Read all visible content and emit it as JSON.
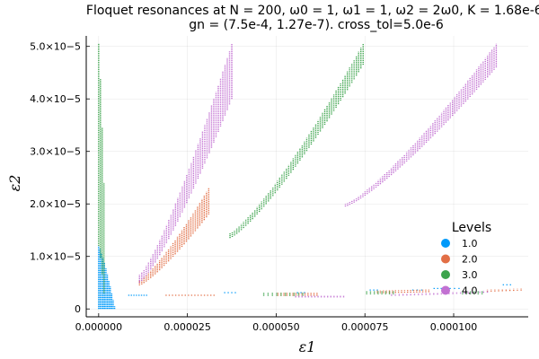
{
  "chart_data": {
    "type": "scatter",
    "title_line1": "Floquet resonances at N = 200, ω0 = 1, ω1 = 1, ω2 = 2ω0, K = 1.68e-6,",
    "title_line2": "gn = (7.5e-4, 1.27e-7). cross_tol=5.0e-6",
    "xlabel": "ε1",
    "ylabel": "ε2",
    "xlim": [
      -3.5e-06,
      0.000121
    ],
    "ylim": [
      -1.5e-06,
      5.2e-05
    ],
    "xticks": [
      0,
      2.5e-05,
      5e-05,
      7.5e-05,
      0.0001
    ],
    "xtick_labels": [
      "0.000000",
      "0.000025",
      "0.000050",
      "0.000075",
      "0.000100"
    ],
    "yticks": [
      0,
      1e-05,
      2e-05,
      3e-05,
      4e-05,
      5e-05
    ],
    "ytick_labels": [
      "0",
      "1.0×10−5",
      "2.0×10−5",
      "3.0×10−5",
      "4.0×10−5",
      "5.0×10−5"
    ],
    "grid": true,
    "legend_title": "Levels",
    "legend_position": "lower-right",
    "series": [
      {
        "name": "1.0",
        "color": "#009AFA",
        "bands": [
          {
            "x0": 0.0,
            "x1": 4.5e-06,
            "ylow0": 0.0,
            "ylow1": 0.0,
            "yhigh0": 1.2e-05,
            "yhigh1": 5e-07,
            "n": 12
          },
          {
            "x0": 8.5e-06,
            "x1": 1.35e-05,
            "ylow0": 2.5e-06,
            "ylow1": 2.5e-06,
            "yhigh0": 2.8e-06,
            "yhigh1": 2.8e-06,
            "n": 8
          },
          {
            "x0": 3.55e-05,
            "x1": 3.85e-05,
            "ylow0": 3e-06,
            "ylow1": 3e-06,
            "yhigh0": 3.3e-06,
            "yhigh1": 3.3e-06,
            "n": 4
          },
          {
            "x0": 5.6e-05,
            "x1": 5.8e-05,
            "ylow0": 3e-06,
            "ylow1": 3e-06,
            "yhigh0": 3.3e-06,
            "yhigh1": 3.3e-06,
            "n": 3
          },
          {
            "x0": 7.65e-05,
            "x1": 7.85e-05,
            "ylow0": 3.5e-06,
            "ylow1": 3.5e-06,
            "yhigh0": 3.8e-06,
            "yhigh1": 3.8e-06,
            "n": 3
          },
          {
            "x0": 8.85e-05,
            "x1": 9.1e-05,
            "ylow0": 3.5e-06,
            "ylow1": 3.5e-06,
            "yhigh0": 3.8e-06,
            "yhigh1": 3.8e-06,
            "n": 3
          },
          {
            "x0": 9.45e-05,
            "x1": 9.65e-05,
            "ylow0": 3.8e-06,
            "ylow1": 3.8e-06,
            "yhigh0": 4.1e-06,
            "yhigh1": 4.1e-06,
            "n": 3
          },
          {
            "x0": 9.9e-05,
            "x1": 0.0001015,
            "ylow0": 3.8e-06,
            "ylow1": 3.8e-06,
            "yhigh0": 4.1e-06,
            "yhigh1": 4.1e-06,
            "n": 3
          },
          {
            "x0": 0.000114,
            "x1": 0.000116,
            "ylow0": 4.5e-06,
            "ylow1": 4.5e-06,
            "yhigh0": 4.8e-06,
            "yhigh1": 4.8e-06,
            "n": 3
          }
        ]
      },
      {
        "name": "2.0",
        "color": "#E26F46",
        "bands": [
          {
            "x0": 1.15e-05,
            "x1": 3.1e-05,
            "ylow0": 4.5e-06,
            "ylow1": 1.8e-05,
            "yhigh0": 5.5e-06,
            "yhigh1": 2.3e-05,
            "n": 32
          },
          {
            "x0": 1.9e-05,
            "x1": 3.25e-05,
            "ylow0": 2.5e-06,
            "ylow1": 2.5e-06,
            "yhigh0": 2.8e-06,
            "yhigh1": 2.8e-06,
            "n": 16
          },
          {
            "x0": 5.05e-05,
            "x1": 6.15e-05,
            "ylow0": 2.5e-06,
            "ylow1": 2.5e-06,
            "yhigh0": 3.1e-06,
            "yhigh1": 3.1e-06,
            "n": 14
          },
          {
            "x0": 7.85e-05,
            "x1": 9.3e-05,
            "ylow0": 3e-06,
            "ylow1": 3.2e-06,
            "yhigh0": 3.5e-06,
            "yhigh1": 3.7e-06,
            "n": 18
          },
          {
            "x0": 0.0001095,
            "x1": 0.000119,
            "ylow0": 3.3e-06,
            "ylow1": 3.5e-06,
            "yhigh0": 3.7e-06,
            "yhigh1": 3.9e-06,
            "n": 10
          }
        ]
      },
      {
        "name": "3.0",
        "color": "#3DA44D",
        "bands": [
          {
            "x0": 0.0,
            "x1": 1.5e-06,
            "ylow0": 1.2e-05,
            "ylow1": 3e-06,
            "yhigh0": 5.05e-05,
            "yhigh1": 2.4e-05,
            "n": 4
          },
          {
            "x0": 3.7e-05,
            "x1": 7.45e-05,
            "ylow0": 1.35e-05,
            "ylow1": 4.65e-05,
            "yhigh0": 1.45e-05,
            "yhigh1": 5.05e-05,
            "n": 60
          },
          {
            "x0": 4.65e-05,
            "x1": 5.75e-05,
            "ylow0": 2.5e-06,
            "ylow1": 2.5e-06,
            "yhigh0": 3.1e-06,
            "yhigh1": 3.1e-06,
            "n": 10
          },
          {
            "x0": 7.55e-05,
            "x1": 8.3e-05,
            "ylow0": 2.8e-06,
            "ylow1": 2.8e-06,
            "yhigh0": 3.4e-06,
            "yhigh1": 3.4e-06,
            "n": 8
          },
          {
            "x0": 0.0001025,
            "x1": 0.000108,
            "ylow0": 2.8e-06,
            "ylow1": 2.8e-06,
            "yhigh0": 3.4e-06,
            "yhigh1": 3.4e-06,
            "n": 6
          }
        ]
      },
      {
        "name": "4.0",
        "color": "#C271D2",
        "bands": [
          {
            "x0": 1.15e-05,
            "x1": 3.75e-05,
            "ylow0": 5e-06,
            "ylow1": 4e-05,
            "yhigh0": 6.5e-06,
            "yhigh1": 5.05e-05,
            "n": 42
          },
          {
            "x0": 6.95e-05,
            "x1": 0.000112,
            "ylow0": 1.95e-05,
            "ylow1": 4.6e-05,
            "yhigh0": 2e-05,
            "yhigh1": 5.05e-05,
            "n": 70
          },
          {
            "x0": 5.55e-05,
            "x1": 6.9e-05,
            "ylow0": 2.2e-06,
            "ylow1": 2.2e-06,
            "yhigh0": 2.6e-06,
            "yhigh1": 2.6e-06,
            "n": 16
          },
          {
            "x0": 8.25e-05,
            "x1": 0.0001095,
            "ylow0": 2.5e-06,
            "ylow1": 3.1e-06,
            "yhigh0": 2.9e-06,
            "yhigh1": 3.5e-06,
            "n": 26
          }
        ]
      }
    ]
  }
}
